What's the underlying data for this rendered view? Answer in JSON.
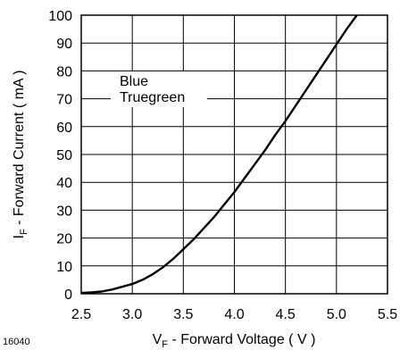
{
  "chart_data": {
    "type": "line",
    "figure_id": "16040",
    "xlabel": {
      "main": "V",
      "sub": "F",
      "rest": "  - Forward Voltage ( V )"
    },
    "ylabel": {
      "main": "I",
      "sub": "F",
      "rest": " - Forward Current ( mA )"
    },
    "xlim": [
      2.5,
      5.5
    ],
    "ylim": [
      0,
      100
    ],
    "x_ticks": [
      "2.5",
      "3.0",
      "3.5",
      "4.0",
      "4.5",
      "5.0",
      "5.5"
    ],
    "y_ticks": [
      "0",
      "10",
      "20",
      "30",
      "40",
      "50",
      "60",
      "70",
      "80",
      "90",
      "100"
    ],
    "grid": true,
    "annotation": [
      "Blue",
      "Truegreen"
    ],
    "series": [
      {
        "x": [
          2.5,
          2.6,
          2.7,
          2.8,
          2.9,
          3.0,
          3.1,
          3.2,
          3.3,
          3.4,
          3.5,
          3.6,
          3.7,
          3.8,
          3.9,
          4.0,
          4.1,
          4.2,
          4.3,
          4.4,
          4.5,
          4.6,
          4.7,
          4.8,
          4.9,
          5.0,
          5.1,
          5.2
        ],
        "y": [
          0.3,
          0.5,
          0.8,
          1.5,
          2.5,
          3.5,
          5.0,
          7.0,
          9.5,
          12.5,
          16.0,
          19.5,
          23.5,
          27.5,
          32.0,
          36.5,
          41.5,
          46.5,
          51.5,
          57.0,
          62.0,
          67.5,
          73.0,
          78.5,
          84.0,
          89.5,
          95.0,
          100.0
        ]
      }
    ]
  }
}
